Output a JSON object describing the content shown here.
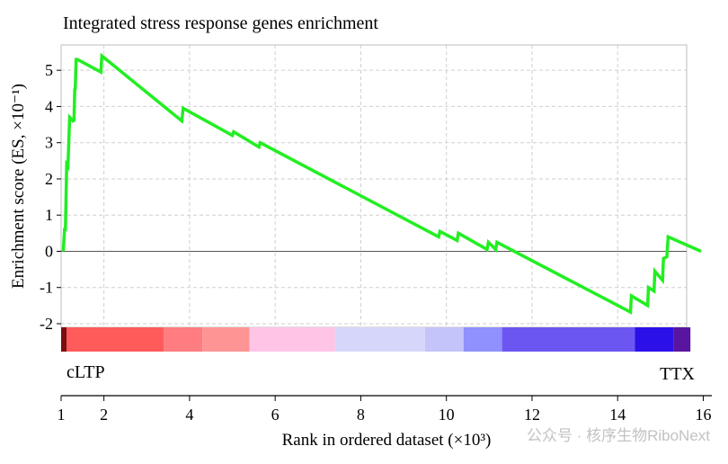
{
  "chart_data": {
    "type": "line",
    "title": "Integrated stress response genes enrichment",
    "ylabel": "Enrichment score (ES, ×10⁻¹)",
    "xlabel": "Rank in ordered dataset (×10³)",
    "ylim": [
      -2.1,
      5.7
    ],
    "xlim": [
      1,
      16.2
    ],
    "y_ticks": [
      -2,
      -1,
      0,
      1,
      2,
      3,
      4,
      5
    ],
    "y_tick_labels": [
      "-2",
      "-1",
      "0",
      "1",
      "2",
      "3",
      "4",
      "5"
    ],
    "x_ticks": [
      1,
      2,
      4,
      6,
      8,
      10,
      12,
      14,
      16
    ],
    "x_tick_labels": [
      "1",
      "2",
      "4",
      "6",
      "8",
      "10",
      "12",
      "14",
      "16"
    ],
    "grid": true,
    "line_color": "#22ee22",
    "series": [
      {
        "x": [
          1.05,
          1.08,
          1.1,
          1.13,
          1.16,
          1.2,
          1.28,
          1.3,
          1.32,
          1.33,
          1.35,
          1.38,
          1.93,
          1.95,
          3.82,
          3.85,
          5.0,
          5.03,
          5.62,
          5.65,
          9.82,
          9.85,
          10.25,
          10.28,
          10.95,
          10.98,
          11.15,
          11.18,
          14.3,
          14.32,
          14.7,
          14.72,
          14.85,
          14.87,
          15.05,
          15.07,
          15.15,
          15.18,
          15.95
        ],
        "y": [
          0.0,
          0.6,
          0.6,
          2.4,
          2.35,
          3.7,
          3.6,
          3.62,
          4.5,
          4.45,
          5.3,
          5.3,
          4.95,
          5.4,
          3.6,
          3.95,
          3.2,
          3.3,
          2.88,
          3.0,
          0.4,
          0.55,
          0.3,
          0.5,
          0.05,
          0.25,
          0.05,
          0.25,
          -1.68,
          -1.23,
          -1.5,
          -1.0,
          -1.1,
          -0.55,
          -0.8,
          -0.2,
          -0.15,
          0.4,
          0.0
        ]
      }
    ],
    "rank_colorbar": [
      {
        "to": 3.4,
        "color": "#ff5b5b"
      },
      {
        "to": 4.3,
        "color": "#ff7c80"
      },
      {
        "to": 5.4,
        "color": "#ff9494"
      },
      {
        "to": 7.4,
        "color": "#ffc4e6"
      },
      {
        "to": 9.5,
        "color": "#d6d6fa"
      },
      {
        "to": 10.4,
        "color": "#c4c4fa"
      },
      {
        "to": 11.3,
        "color": "#9090ff"
      },
      {
        "to": 14.4,
        "color": "#6c56f2"
      },
      {
        "to": 15.3,
        "color": "#2c10e8"
      },
      {
        "to": 15.7,
        "color": "#5a15a0"
      }
    ],
    "annotations": {
      "left": "cLTP",
      "right": "TTX"
    }
  },
  "watermark": "公众号 · 核序生物RiboNext"
}
